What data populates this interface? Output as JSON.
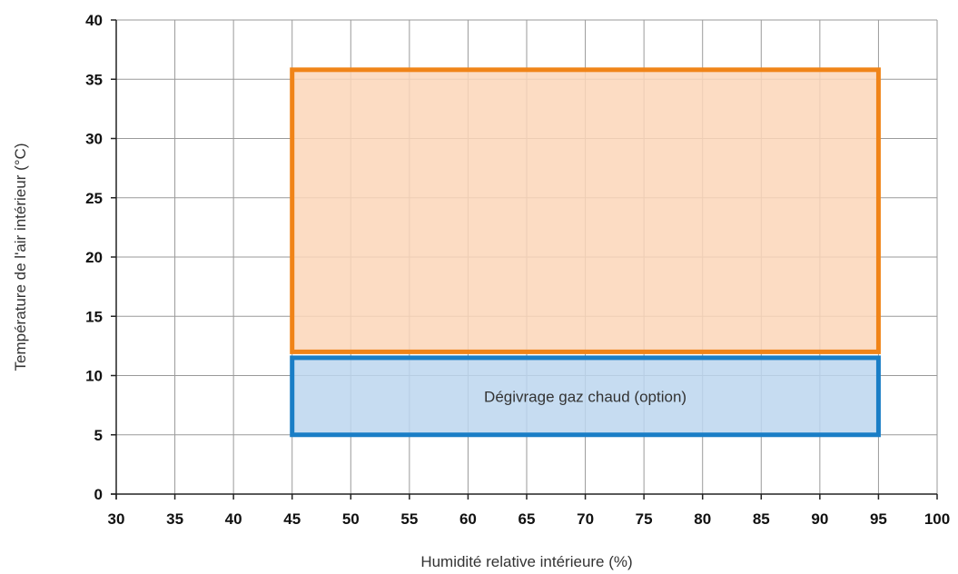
{
  "chart_data": {
    "type": "area",
    "xlabel": "Humidité relative intérieure (%)",
    "ylabel": "Température de l'air intérieur (°C)",
    "xlim": [
      30,
      100
    ],
    "ylim": [
      0,
      40
    ],
    "xticks": [
      30,
      35,
      40,
      45,
      50,
      55,
      60,
      65,
      70,
      75,
      80,
      85,
      90,
      95,
      100
    ],
    "yticks": [
      0,
      5,
      10,
      15,
      20,
      25,
      30,
      35,
      40
    ],
    "grid": true,
    "regions": [
      {
        "id": "operating-range",
        "label": "",
        "x": [
          45,
          95
        ],
        "y": [
          12,
          35.8
        ],
        "fill": "#fbd6b8",
        "stroke": "#f08418"
      },
      {
        "id": "hot-gas-defrost",
        "label": "Dégivrage  gaz chaud (option)",
        "x": [
          45,
          95
        ],
        "y": [
          5,
          11.5
        ],
        "fill": "#bcd6ef",
        "stroke": "#1a7ec6"
      }
    ]
  },
  "colors": {
    "grid": "#9a9a9a",
    "axis": "#222222"
  }
}
